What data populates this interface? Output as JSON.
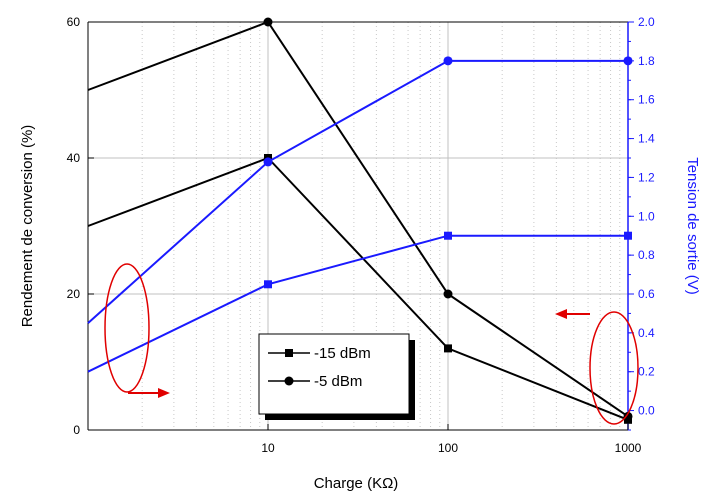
{
  "chart_data": {
    "type": "line",
    "xlabel": "Charge (KΩ)",
    "ylabel_left": "Rendement de conversion (%)",
    "ylabel_right": "Tension de sortie (V)",
    "x_scale": "log",
    "xlim": [
      1,
      1000
    ],
    "x_ticks": [
      10,
      100,
      1000
    ],
    "x_tick_labels": [
      "10",
      "100",
      "1000"
    ],
    "ylim_left": [
      0,
      60
    ],
    "y_left_ticks": [
      0,
      20,
      40,
      60
    ],
    "y_left_tick_labels": [
      "0",
      "20",
      "40",
      "60"
    ],
    "ylim_right": [
      -0.1,
      2.0
    ],
    "y_right_ticks": [
      0.0,
      0.2,
      0.4,
      0.6,
      0.8,
      1.0,
      1.2,
      1.4,
      1.6,
      1.8,
      2.0
    ],
    "y_right_tick_labels": [
      "0.0",
      "0.2",
      "0.4",
      "0.6",
      "0.8",
      "1.0",
      "1.2",
      "1.4",
      "1.6",
      "1.8",
      "2.0"
    ],
    "grid": true,
    "legend_position": "bottom-center",
    "legend": [
      "-15 dBm",
      "-5 dBm"
    ],
    "series": [
      {
        "name": "-15 dBm",
        "axis": "left",
        "marker": "square",
        "color": "#000000",
        "x": [
          1,
          10,
          100,
          1000
        ],
        "y": [
          30,
          40,
          12,
          1.5
        ]
      },
      {
        "name": "-5 dBm",
        "axis": "left",
        "marker": "circle",
        "color": "#000000",
        "x": [
          1,
          10,
          100,
          1000
        ],
        "y": [
          50,
          60,
          20,
          2
        ]
      },
      {
        "name": "-15 dBm",
        "axis": "right",
        "marker": "square",
        "color": "#1a1aff",
        "x": [
          1,
          10,
          100,
          1000
        ],
        "y": [
          0.2,
          0.65,
          0.9,
          0.9
        ]
      },
      {
        "name": "-5 dBm",
        "axis": "right",
        "marker": "circle",
        "color": "#1a1aff",
        "x": [
          1,
          10,
          100,
          1000
        ],
        "y": [
          0.45,
          1.28,
          1.8,
          1.8
        ]
      }
    ],
    "colors": {
      "left_axis": "#000000",
      "right_axis": "#1a1aff",
      "annotation": "#e00000"
    }
  }
}
